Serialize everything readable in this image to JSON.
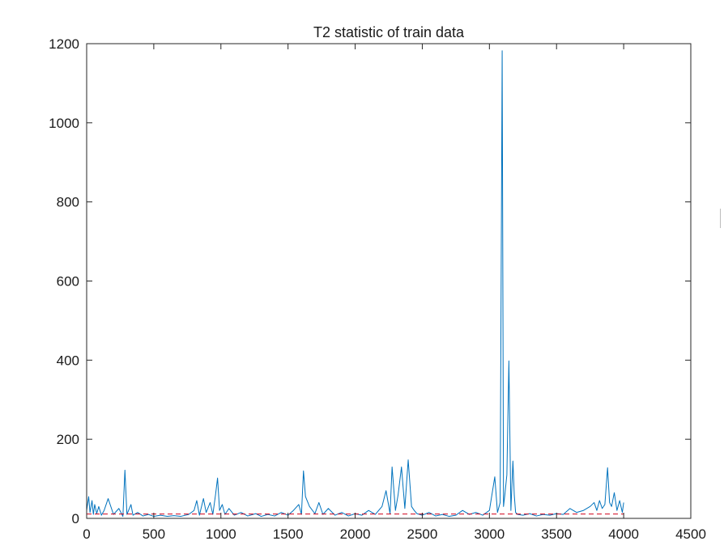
{
  "chart_data": {
    "type": "line",
    "title": "T2 statistic of train data",
    "xlabel": "",
    "ylabel": "",
    "xlim": [
      0,
      4500
    ],
    "ylim": [
      0,
      1200
    ],
    "xticks": [
      0,
      500,
      1000,
      1500,
      2000,
      2500,
      3000,
      3500,
      4000,
      4500
    ],
    "yticks": [
      0,
      200,
      400,
      600,
      800,
      1000,
      1200
    ],
    "grid": false,
    "legend": "none",
    "colors": {
      "series": "#0072BD",
      "threshold": "#D0021B"
    },
    "series": [
      {
        "style": "solid",
        "x": [
          0,
          15,
          25,
          40,
          50,
          60,
          75,
          90,
          110,
          130,
          160,
          200,
          240,
          270,
          285,
          300,
          330,
          345,
          380,
          420,
          460,
          500,
          550,
          600,
          650,
          700,
          760,
          800,
          820,
          840,
          870,
          890,
          920,
          940,
          960,
          975,
          990,
          1010,
          1030,
          1060,
          1100,
          1150,
          1200,
          1260,
          1300,
          1350,
          1400,
          1450,
          1500,
          1540,
          1580,
          1600,
          1615,
          1630,
          1660,
          1700,
          1730,
          1760,
          1800,
          1850,
          1900,
          1950,
          2000,
          2050,
          2100,
          2150,
          2200,
          2230,
          2260,
          2275,
          2300,
          2320,
          2345,
          2370,
          2395,
          2420,
          2440,
          2460,
          2500,
          2550,
          2600,
          2650,
          2700,
          2750,
          2800,
          2850,
          2900,
          2950,
          3000,
          3040,
          3060,
          3080,
          3095,
          3105,
          3115,
          3130,
          3145,
          3160,
          3175,
          3185,
          3195,
          3210,
          3250,
          3300,
          3350,
          3400,
          3450,
          3500,
          3550,
          3600,
          3650,
          3700,
          3750,
          3780,
          3800,
          3820,
          3840,
          3860,
          3880,
          3895,
          3910,
          3930,
          3950,
          3970,
          3990,
          4000
        ],
        "y": [
          20,
          55,
          15,
          45,
          10,
          35,
          12,
          30,
          8,
          20,
          50,
          10,
          25,
          5,
          122,
          10,
          35,
          8,
          15,
          6,
          10,
          5,
          8,
          5,
          7,
          5,
          10,
          20,
          45,
          8,
          50,
          15,
          40,
          10,
          60,
          102,
          20,
          35,
          10,
          25,
          8,
          15,
          6,
          12,
          5,
          10,
          6,
          15,
          8,
          20,
          35,
          10,
          120,
          55,
          30,
          12,
          40,
          10,
          25,
          8,
          15,
          6,
          12,
          8,
          20,
          10,
          30,
          70,
          12,
          130,
          20,
          60,
          130,
          25,
          148,
          30,
          20,
          12,
          8,
          15,
          6,
          10,
          5,
          8,
          20,
          10,
          15,
          8,
          20,
          105,
          15,
          40,
          1182,
          30,
          60,
          110,
          398,
          20,
          145,
          60,
          15,
          10,
          8,
          12,
          6,
          10,
          8,
          12,
          10,
          25,
          15,
          20,
          30,
          40,
          20,
          45,
          25,
          35,
          128,
          40,
          30,
          65,
          20,
          45,
          15,
          40
        ]
      },
      {
        "style": "dashed",
        "x": [
          0,
          4000
        ],
        "y": [
          11,
          11
        ]
      }
    ]
  }
}
